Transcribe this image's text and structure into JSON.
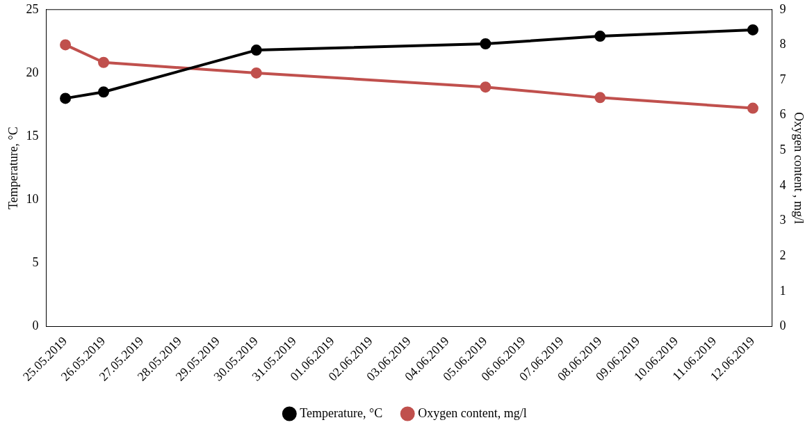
{
  "chart_data": {
    "type": "line",
    "x": [
      "2019-05-25",
      "2019-05-26",
      "2019-05-30",
      "2019-06-05",
      "2019-06-08",
      "2019-06-12"
    ],
    "series": [
      {
        "name": "Temperature, °C",
        "color": "#000000",
        "values": [
          18,
          18.5,
          21.8,
          22.3,
          22.9,
          23.4
        ]
      },
      {
        "name": "Oxygen content, mg/l",
        "color": "#c0504d",
        "axis": "y2",
        "values": [
          8.0,
          7.5,
          7.2,
          6.8,
          6.5,
          6.2
        ]
      }
    ],
    "xlim": [
      "2019-05-24T12:00",
      "2019-06-12T12:00"
    ],
    "xticks": [
      {
        "value": "2019-05-25",
        "label": "25.05.2019"
      },
      {
        "value": "2019-05-26",
        "label": "26.05.2019"
      },
      {
        "value": "2019-05-27",
        "label": "27.05.2019"
      },
      {
        "value": "2019-05-28",
        "label": "28.05.2019"
      },
      {
        "value": "2019-05-29",
        "label": "29.05.2019"
      },
      {
        "value": "2019-05-30",
        "label": "30.05.2019"
      },
      {
        "value": "2019-05-31",
        "label": "31.05.2019"
      },
      {
        "value": "2019-06-01",
        "label": "01.06.2019"
      },
      {
        "value": "2019-06-02",
        "label": "02.06.2019"
      },
      {
        "value": "2019-06-03",
        "label": "03.06.2019"
      },
      {
        "value": "2019-06-04",
        "label": "04.06.2019"
      },
      {
        "value": "2019-06-05",
        "label": "05.06.2019"
      },
      {
        "value": "2019-06-06",
        "label": "06.06.2019"
      },
      {
        "value": "2019-06-07",
        "label": "07.06.2019"
      },
      {
        "value": "2019-06-08",
        "label": "08.06.2019"
      },
      {
        "value": "2019-06-09",
        "label": "09.06.2019"
      },
      {
        "value": "2019-06-10",
        "label": "10.06.2019"
      },
      {
        "value": "2019-06-11",
        "label": "11.06.2019"
      },
      {
        "value": "2019-06-12",
        "label": "12.06.2019"
      }
    ],
    "ylabel": "Temperature, °C",
    "y2label": "Oxygen content , mg/l",
    "ylim": [
      0,
      25
    ],
    "yticks": [
      0,
      5,
      10,
      15,
      20,
      25
    ],
    "y2lim": [
      0,
      9
    ],
    "y2ticks": [
      0,
      1,
      2,
      3,
      4,
      5,
      6,
      7,
      8,
      9
    ],
    "grid": false,
    "legend": "bottom",
    "marker": "circle",
    "line_style": "solid"
  }
}
